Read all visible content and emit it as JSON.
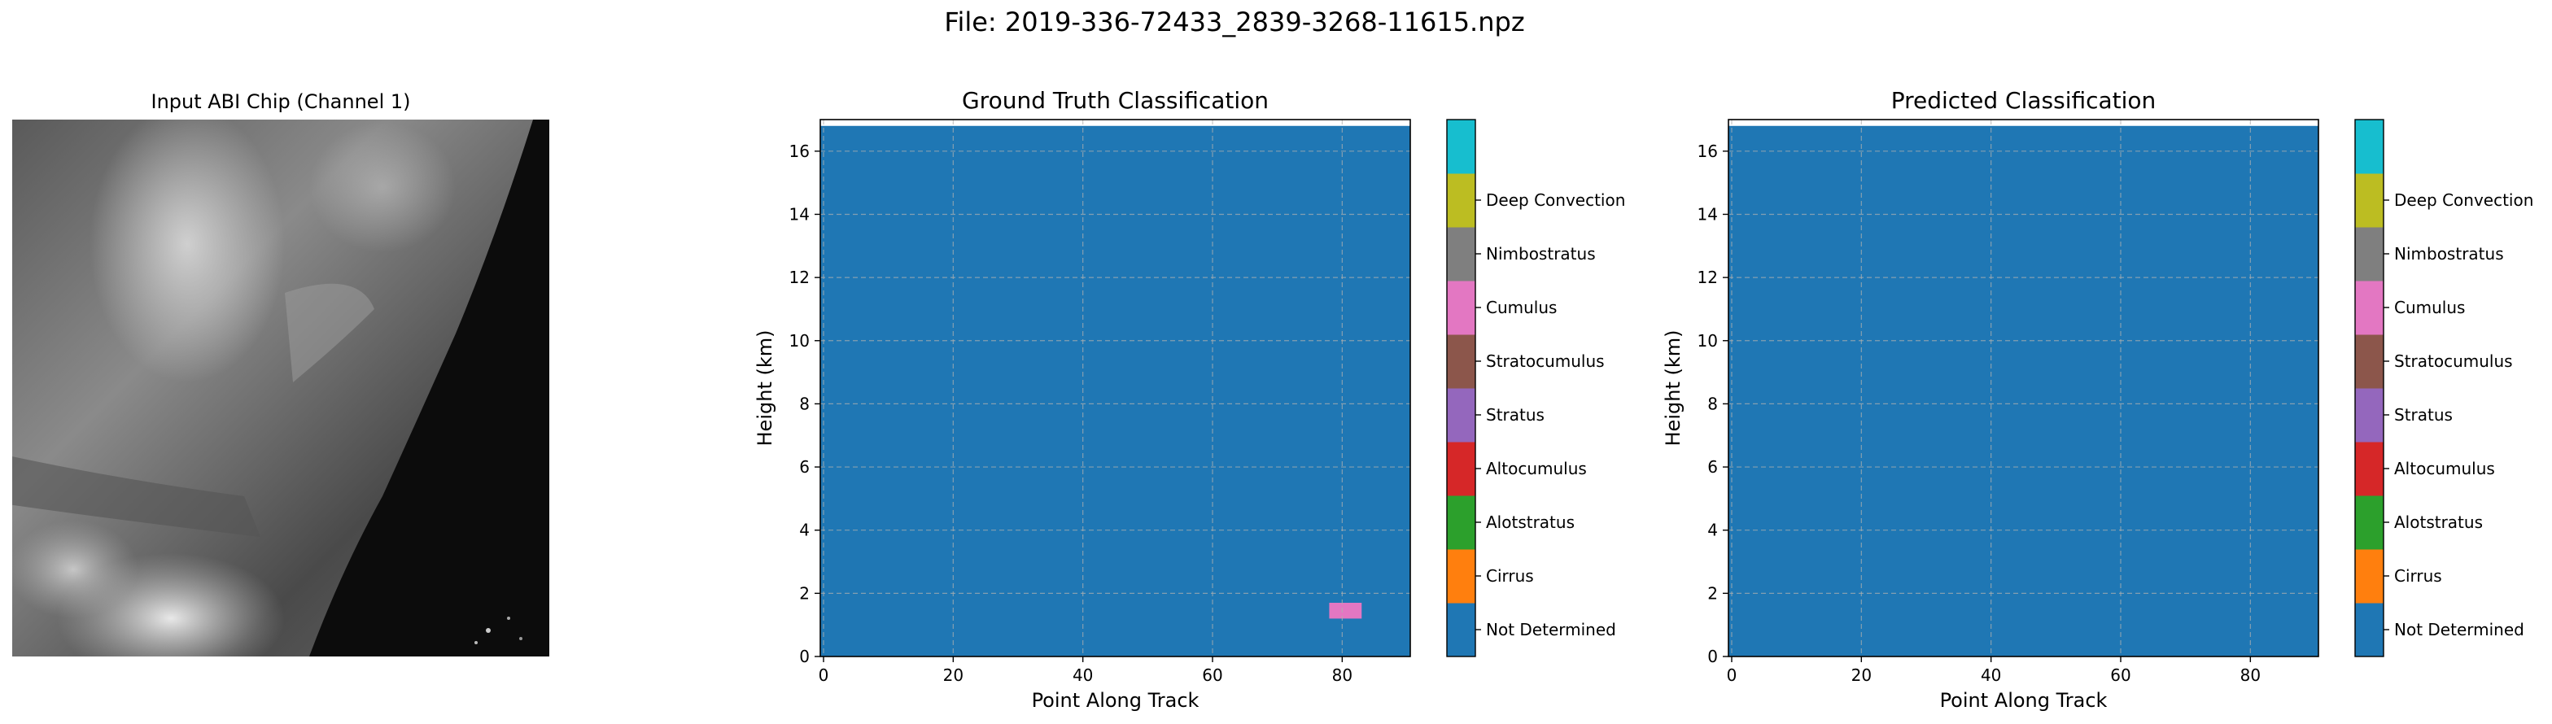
{
  "suptitle": "File: 2019-336-72433_2839-3268-11615.npz",
  "input_panel": {
    "title": "Input ABI Chip (Channel 1)"
  },
  "classes": [
    {
      "label": "Not Determined",
      "color": "#1f77b4"
    },
    {
      "label": "Cirrus",
      "color": "#ff7f0e"
    },
    {
      "label": "Alotstratus",
      "color": "#2ca02c"
    },
    {
      "label": "Altocumulus",
      "color": "#d62728"
    },
    {
      "label": "Stratus",
      "color": "#9467bd"
    },
    {
      "label": "Stratocumulus",
      "color": "#8c564b"
    },
    {
      "label": "Cumulus",
      "color": "#e377c2"
    },
    {
      "label": "Nimbostratus",
      "color": "#7f7f7f"
    },
    {
      "label": "Deep Convection",
      "color": "#bcbd22"
    },
    {
      "label": "",
      "color": "#17becf"
    }
  ],
  "chart_data": [
    {
      "type": "heatmap",
      "title": "Ground Truth Classification",
      "xlabel": "Point Along Track",
      "ylabel": "Height (km)",
      "xlim": [
        -0.5,
        90.5
      ],
      "ylim": [
        0,
        17
      ],
      "xticks": [
        0,
        20,
        40,
        60,
        80
      ],
      "yticks": [
        0,
        2,
        4,
        6,
        8,
        10,
        12,
        14,
        16
      ],
      "grid": true,
      "background_class": "Not Determined",
      "data_top_km": 16.8,
      "patches": [
        {
          "class": "Cumulus",
          "x": [
            78,
            83
          ],
          "y": [
            1.2,
            1.7
          ]
        }
      ]
    },
    {
      "type": "heatmap",
      "title": "Predicted Classification",
      "xlabel": "Point Along Track",
      "ylabel": "Height (km)",
      "xlim": [
        -0.5,
        90.5
      ],
      "ylim": [
        0,
        17
      ],
      "xticks": [
        0,
        20,
        40,
        60,
        80
      ],
      "yticks": [
        0,
        2,
        4,
        6,
        8,
        10,
        12,
        14,
        16
      ],
      "grid": true,
      "background_class": "Not Determined",
      "data_top_km": 16.8,
      "patches": []
    }
  ]
}
